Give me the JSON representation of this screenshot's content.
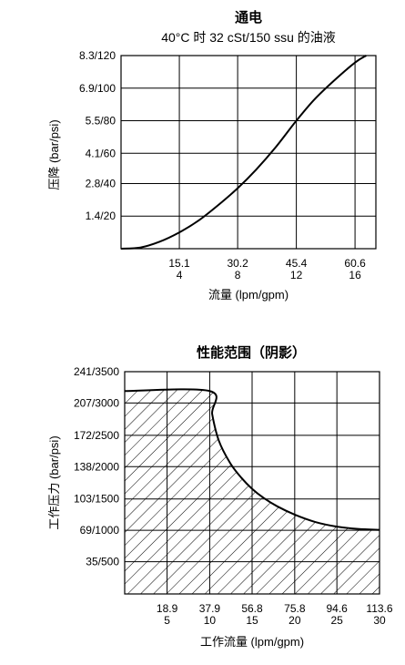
{
  "chart_data": [
    {
      "type": "line",
      "title": "通电",
      "subtitle": "40°C 时 32 cSt/150 ssu 的油液",
      "xlabel": "流量 (lpm/gpm)",
      "ylabel": "压降 (bar/psi)",
      "xlim": [
        0,
        66
      ],
      "ylim": [
        0,
        8.3
      ],
      "x_ticks": [
        {
          "value": 15.1,
          "lpm": "15.1",
          "gpm": "4"
        },
        {
          "value": 30.2,
          "lpm": "30.2",
          "gpm": "8"
        },
        {
          "value": 45.4,
          "lpm": "45.4",
          "gpm": "12"
        },
        {
          "value": 60.6,
          "lpm": "60.6",
          "gpm": "16"
        }
      ],
      "y_ticks": [
        {
          "value": 1.4,
          "label": "1.4/20"
        },
        {
          "value": 2.8,
          "label": "2.8/40"
        },
        {
          "value": 4.1,
          "label": "4.1/60"
        },
        {
          "value": 5.5,
          "label": "5.5/80"
        },
        {
          "value": 6.9,
          "label": "6.9/100"
        },
        {
          "value": 8.3,
          "label": "8.3/120"
        }
      ],
      "grid": true,
      "series": [
        {
          "x": [
            0,
            5,
            10,
            15.1,
            20,
            25,
            30.2,
            35,
            40,
            45.4,
            50,
            55,
            60.6,
            63.5
          ],
          "y": [
            0,
            0.05,
            0.3,
            0.7,
            1.2,
            1.85,
            2.6,
            3.4,
            4.35,
            5.5,
            6.4,
            7.2,
            8.0,
            8.3
          ]
        }
      ]
    },
    {
      "type": "area",
      "title": "性能范围（阴影）",
      "xlabel": "工作流量 (lpm/gpm)",
      "ylabel": "工作压力 (bar/psi)",
      "xlim": [
        0,
        113.6
      ],
      "ylim": [
        0,
        241
      ],
      "x_ticks": [
        {
          "value": 18.9,
          "lpm": "18.9",
          "gpm": "5"
        },
        {
          "value": 37.9,
          "lpm": "37.9",
          "gpm": "10"
        },
        {
          "value": 56.8,
          "lpm": "56.8",
          "gpm": "15"
        },
        {
          "value": 75.8,
          "lpm": "75.8",
          "gpm": "20"
        },
        {
          "value": 94.6,
          "lpm": "94.6",
          "gpm": "25"
        },
        {
          "value": 113.6,
          "lpm": "113.6",
          "gpm": "30"
        }
      ],
      "y_ticks": [
        {
          "value": 35,
          "label": "35/500"
        },
        {
          "value": 69,
          "label": "69/1000"
        },
        {
          "value": 103,
          "label": "103/1500"
        },
        {
          "value": 138,
          "label": "138/2000"
        },
        {
          "value": 172,
          "label": "172/2500"
        },
        {
          "value": 207,
          "label": "207/3000"
        },
        {
          "value": 241,
          "label": "241/3500"
        }
      ],
      "grid": true,
      "series": [
        {
          "x": [
            0,
            37.9,
            39,
            42,
            47,
            52,
            56.8,
            62,
            68,
            75.8,
            85,
            94.6,
            104,
            113.6
          ],
          "y": [
            220,
            220,
            195,
            166,
            142,
            126,
            114,
            104,
            95,
            86,
            78,
            73,
            70.5,
            69.5
          ]
        }
      ]
    }
  ]
}
